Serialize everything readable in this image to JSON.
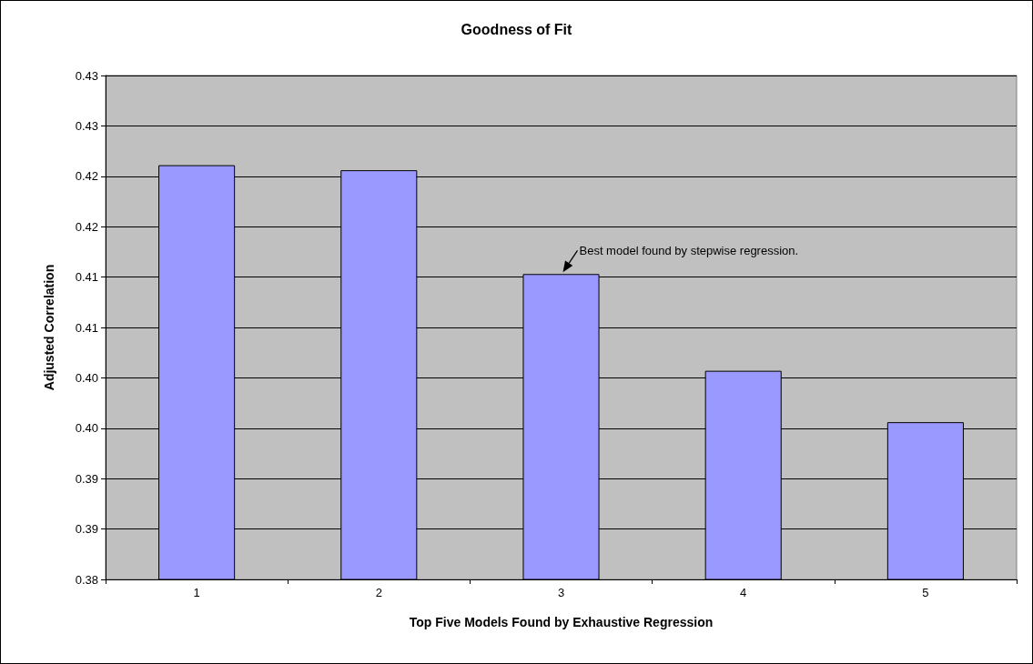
{
  "chart_data": {
    "type": "bar",
    "title": "Goodness of Fit",
    "xlabel": "Top Five Models Found by Exhaustive Regression",
    "ylabel": "Adjusted Correlation",
    "categories": [
      "1",
      "2",
      "3",
      "4",
      "5"
    ],
    "values": [
      0.4211,
      0.4206,
      0.4103,
      0.4007,
      0.3956
    ],
    "color": "#9999ff",
    "ylim": [
      0.38,
      0.43
    ],
    "yticks": [
      {
        "value": 0.38,
        "label": "0.38"
      },
      {
        "value": 0.385,
        "label": "0.39"
      },
      {
        "value": 0.39,
        "label": "0.39"
      },
      {
        "value": 0.395,
        "label": "0.40"
      },
      {
        "value": 0.4,
        "label": "0.40"
      },
      {
        "value": 0.405,
        "label": "0.41"
      },
      {
        "value": 0.41,
        "label": "0.41"
      },
      {
        "value": 0.415,
        "label": "0.42"
      },
      {
        "value": 0.42,
        "label": "0.42"
      },
      {
        "value": 0.425,
        "label": "0.43"
      },
      {
        "value": 0.43,
        "label": "0.43"
      }
    ],
    "annotations": [
      {
        "text": "Best model found by stepwise regression.",
        "x": "3",
        "y": 0.4103
      }
    ],
    "grid": "y"
  }
}
